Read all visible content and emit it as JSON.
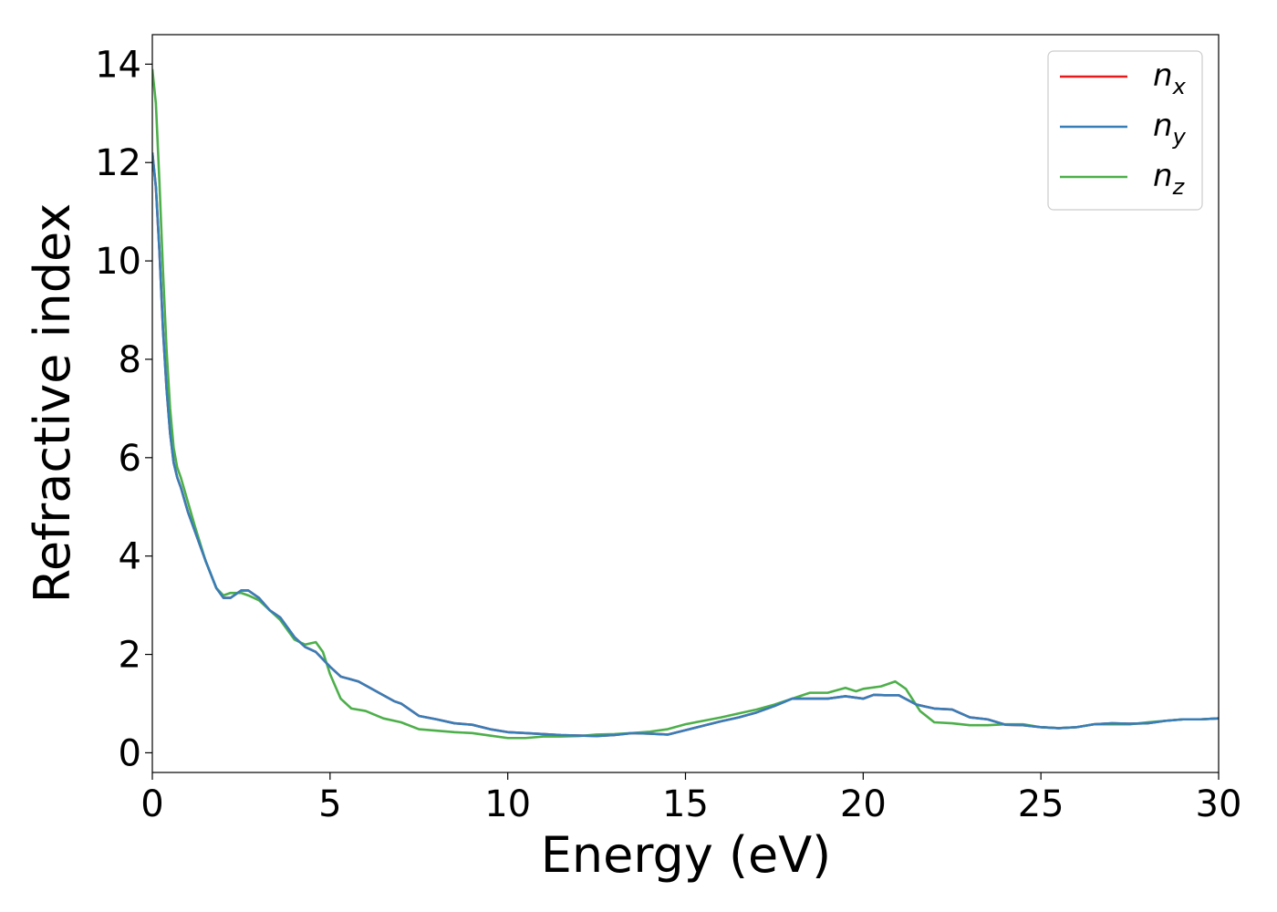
{
  "chart_data": {
    "type": "line",
    "xlabel": "Energy (eV)",
    "ylabel": "Refractive index",
    "xlim": [
      0,
      30
    ],
    "ylim": [
      -0.4,
      14.6
    ],
    "xticks": [
      "0",
      "5",
      "10",
      "15",
      "20",
      "25",
      "30"
    ],
    "yticks": [
      "0",
      "2",
      "4",
      "6",
      "8",
      "10",
      "12",
      "14"
    ],
    "grid": false,
    "legend_position": "top-right",
    "series": [
      {
        "name": "n",
        "sub": "x",
        "color": "#e41a1c",
        "x": [
          0,
          0.1,
          0.2,
          0.3,
          0.4,
          0.5,
          0.6,
          0.7,
          0.8,
          1.0,
          1.2,
          1.5,
          1.8,
          2.0,
          2.2,
          2.5,
          2.7,
          3.0,
          3.3,
          3.6,
          4.0,
          4.3,
          4.6,
          5.0,
          5.3,
          5.8,
          6.3,
          6.8,
          7.0,
          7.5,
          8.0,
          8.5,
          9.0,
          9.5,
          10.0,
          10.5,
          11.0,
          11.5,
          12.0,
          12.5,
          13.0,
          13.5,
          14.0,
          14.5,
          15.0,
          15.5,
          16.0,
          16.5,
          17.0,
          17.5,
          18.0,
          18.5,
          19.0,
          19.5,
          20.0,
          20.3,
          20.6,
          21.0,
          21.5,
          22.0,
          22.5,
          23.0,
          23.5,
          24.0,
          24.5,
          25.0,
          25.5,
          26.0,
          26.5,
          27.0,
          27.5,
          28.0,
          28.5,
          29.0,
          29.5,
          30.0
        ],
        "y": [
          12.2,
          11.5,
          10.2,
          8.6,
          7.4,
          6.5,
          5.9,
          5.6,
          5.4,
          4.9,
          4.5,
          3.9,
          3.35,
          3.15,
          3.15,
          3.3,
          3.3,
          3.15,
          2.9,
          2.75,
          2.35,
          2.15,
          2.05,
          1.75,
          1.55,
          1.45,
          1.25,
          1.05,
          1.0,
          0.75,
          0.68,
          0.6,
          0.57,
          0.48,
          0.42,
          0.4,
          0.38,
          0.36,
          0.35,
          0.34,
          0.36,
          0.4,
          0.39,
          0.37,
          0.46,
          0.55,
          0.64,
          0.72,
          0.82,
          0.95,
          1.1,
          1.1,
          1.1,
          1.15,
          1.1,
          1.18,
          1.17,
          1.17,
          0.98,
          0.9,
          0.88,
          0.72,
          0.68,
          0.57,
          0.56,
          0.52,
          0.5,
          0.52,
          0.58,
          0.6,
          0.59,
          0.6,
          0.65,
          0.68,
          0.68,
          0.7
        ]
      },
      {
        "name": "n",
        "sub": "y",
        "color": "#377eb8",
        "x": [
          0,
          0.1,
          0.2,
          0.3,
          0.4,
          0.5,
          0.6,
          0.7,
          0.8,
          1.0,
          1.2,
          1.5,
          1.8,
          2.0,
          2.2,
          2.5,
          2.7,
          3.0,
          3.3,
          3.6,
          4.0,
          4.3,
          4.6,
          5.0,
          5.3,
          5.8,
          6.3,
          6.8,
          7.0,
          7.5,
          8.0,
          8.5,
          9.0,
          9.5,
          10.0,
          10.5,
          11.0,
          11.5,
          12.0,
          12.5,
          13.0,
          13.5,
          14.0,
          14.5,
          15.0,
          15.5,
          16.0,
          16.5,
          17.0,
          17.5,
          18.0,
          18.5,
          19.0,
          19.5,
          20.0,
          20.3,
          20.6,
          21.0,
          21.5,
          22.0,
          22.5,
          23.0,
          23.5,
          24.0,
          24.5,
          25.0,
          25.5,
          26.0,
          26.5,
          27.0,
          27.5,
          28.0,
          28.5,
          29.0,
          29.5,
          30.0
        ],
        "y": [
          12.2,
          11.5,
          10.2,
          8.6,
          7.4,
          6.5,
          5.9,
          5.6,
          5.4,
          4.9,
          4.5,
          3.9,
          3.35,
          3.15,
          3.15,
          3.3,
          3.3,
          3.15,
          2.9,
          2.75,
          2.35,
          2.15,
          2.05,
          1.75,
          1.55,
          1.45,
          1.25,
          1.05,
          1.0,
          0.75,
          0.68,
          0.6,
          0.57,
          0.48,
          0.42,
          0.4,
          0.38,
          0.36,
          0.35,
          0.34,
          0.36,
          0.4,
          0.39,
          0.37,
          0.46,
          0.55,
          0.64,
          0.72,
          0.82,
          0.95,
          1.1,
          1.1,
          1.1,
          1.15,
          1.1,
          1.18,
          1.17,
          1.17,
          0.98,
          0.9,
          0.88,
          0.72,
          0.68,
          0.57,
          0.56,
          0.52,
          0.5,
          0.52,
          0.58,
          0.6,
          0.59,
          0.6,
          0.65,
          0.68,
          0.68,
          0.7
        ]
      },
      {
        "name": "n",
        "sub": "z",
        "color": "#4daf4a",
        "x": [
          0,
          0.1,
          0.2,
          0.3,
          0.4,
          0.5,
          0.6,
          0.7,
          0.8,
          1.0,
          1.2,
          1.5,
          1.8,
          2.0,
          2.2,
          2.5,
          2.7,
          3.0,
          3.3,
          3.6,
          4.0,
          4.3,
          4.6,
          4.8,
          5.0,
          5.3,
          5.6,
          6.0,
          6.5,
          7.0,
          7.5,
          8.0,
          8.5,
          9.0,
          9.5,
          10.0,
          10.5,
          11.0,
          11.5,
          12.0,
          12.5,
          13.0,
          13.5,
          14.0,
          14.5,
          15.0,
          15.5,
          16.0,
          16.5,
          17.0,
          17.5,
          18.0,
          18.5,
          19.0,
          19.5,
          19.8,
          20.0,
          20.5,
          20.9,
          21.2,
          21.6,
          22.0,
          22.5,
          23.0,
          23.5,
          24.0,
          24.5,
          25.0,
          25.5,
          26.0,
          26.5,
          27.0,
          27.5,
          28.0,
          28.5,
          29.0,
          29.5,
          30.0
        ],
        "y": [
          13.9,
          13.2,
          11.6,
          9.8,
          8.2,
          7.0,
          6.2,
          5.8,
          5.6,
          5.1,
          4.6,
          3.9,
          3.35,
          3.2,
          3.25,
          3.25,
          3.2,
          3.1,
          2.9,
          2.7,
          2.3,
          2.2,
          2.25,
          2.05,
          1.6,
          1.1,
          0.9,
          0.85,
          0.7,
          0.62,
          0.48,
          0.45,
          0.42,
          0.4,
          0.35,
          0.3,
          0.3,
          0.33,
          0.33,
          0.34,
          0.37,
          0.38,
          0.4,
          0.43,
          0.48,
          0.58,
          0.65,
          0.72,
          0.8,
          0.88,
          0.98,
          1.1,
          1.22,
          1.22,
          1.32,
          1.25,
          1.3,
          1.35,
          1.45,
          1.3,
          0.85,
          0.62,
          0.6,
          0.56,
          0.56,
          0.58,
          0.58,
          0.52,
          0.5,
          0.52,
          0.58,
          0.58,
          0.58,
          0.62,
          0.65,
          0.68,
          0.68,
          0.7
        ]
      }
    ]
  }
}
